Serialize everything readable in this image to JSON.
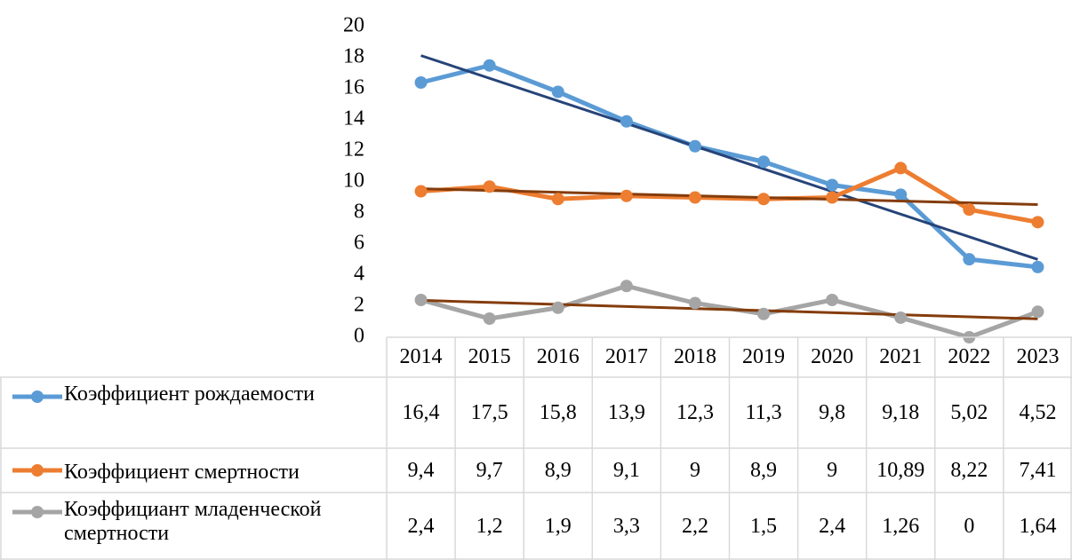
{
  "chart_data": {
    "type": "line",
    "categories": [
      "2014",
      "2015",
      "2016",
      "2017",
      "2018",
      "2019",
      "2020",
      "2021",
      "2022",
      "2023"
    ],
    "series": [
      {
        "name": "Коэффициент рождаемости",
        "color": "#5b9bd5",
        "trendline": true,
        "trendline_color": "#264478",
        "values": [
          16.4,
          17.5,
          15.8,
          13.9,
          12.3,
          11.3,
          9.8,
          9.18,
          5.02,
          4.52
        ],
        "value_labels": [
          "16,4",
          "17,5",
          "15,8",
          "13,9",
          "12,3",
          "11,3",
          "9,8",
          "9,18",
          "5,02",
          "4,52"
        ]
      },
      {
        "name": "Коэффициент смертности",
        "color": "#ed7d31",
        "trendline": true,
        "trendline_color": "#843c0c",
        "values": [
          9.4,
          9.7,
          8.9,
          9.1,
          9,
          8.9,
          9,
          10.89,
          8.22,
          7.41
        ],
        "value_labels": [
          "9,4",
          "9,7",
          "8,9",
          "9,1",
          "9",
          "8,9",
          "9",
          "10,89",
          "8,22",
          "7,41"
        ]
      },
      {
        "name": "Коэффициант младенческой смертности",
        "color": "#a5a5a5",
        "trendline": true,
        "trendline_color": "#843c0c",
        "values": [
          2.4,
          1.2,
          1.9,
          3.3,
          2.2,
          1.5,
          2.4,
          1.26,
          0,
          1.64
        ],
        "value_labels": [
          "2,4",
          "1,2",
          "1,9",
          "3,3",
          "2,2",
          "1,5",
          "2,4",
          "1,26",
          "0",
          "1,64"
        ]
      }
    ],
    "ylim": [
      0,
      20
    ],
    "yticks": [
      0,
      2,
      4,
      6,
      8,
      10,
      12,
      14,
      16,
      18,
      20
    ],
    "grid": false,
    "data_table": true
  }
}
